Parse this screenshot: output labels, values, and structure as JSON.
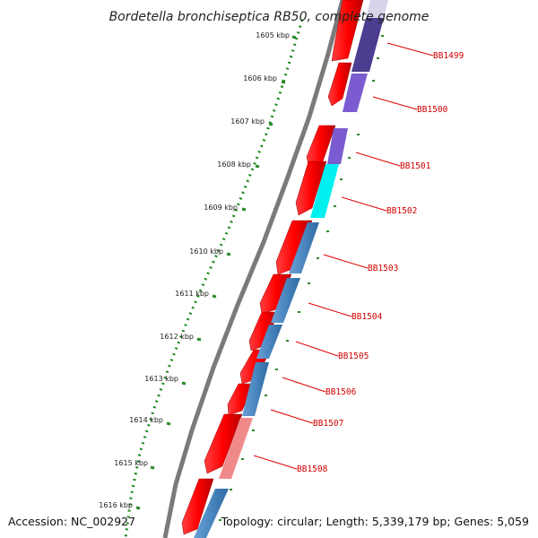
{
  "title": "Bordetella bronchiseptica RB50, complete genome",
  "accession": "Accession: NC_002927",
  "topology": "Topology: circular; Length: 5,339,179 bp; Genes: 5,059",
  "kbp_labels": [
    "1605 kbp",
    "1606 kbp",
    "1607 kbp",
    "1608 kbp",
    "1609 kbp",
    "1610 kbp",
    "1611 kbp",
    "1612 kbp",
    "1613 kbp",
    "1614 kbp",
    "1615 kbp",
    "1616 kbp"
  ],
  "gene_labels": [
    "BB1499",
    "BB1500",
    "BB1501",
    "BB1502",
    "BB1503",
    "BB1504",
    "BB1505",
    "BB1506",
    "BB1507",
    "BB1508"
  ],
  "colors": {
    "backbone": "#7a7a7a",
    "cds": "#ff0000",
    "tick": "#2a8a2a",
    "dotted_ring": "#1f8a1f",
    "gene_label": "#d00000",
    "inner_track": "#4a86c0",
    "highlight_cyan": "#00f0f0",
    "highlight_purple": "#7a5cd0",
    "dark_purple": "#4b3d8f",
    "pink": "#f08a8a",
    "lavender": "#d8d4ec"
  }
}
